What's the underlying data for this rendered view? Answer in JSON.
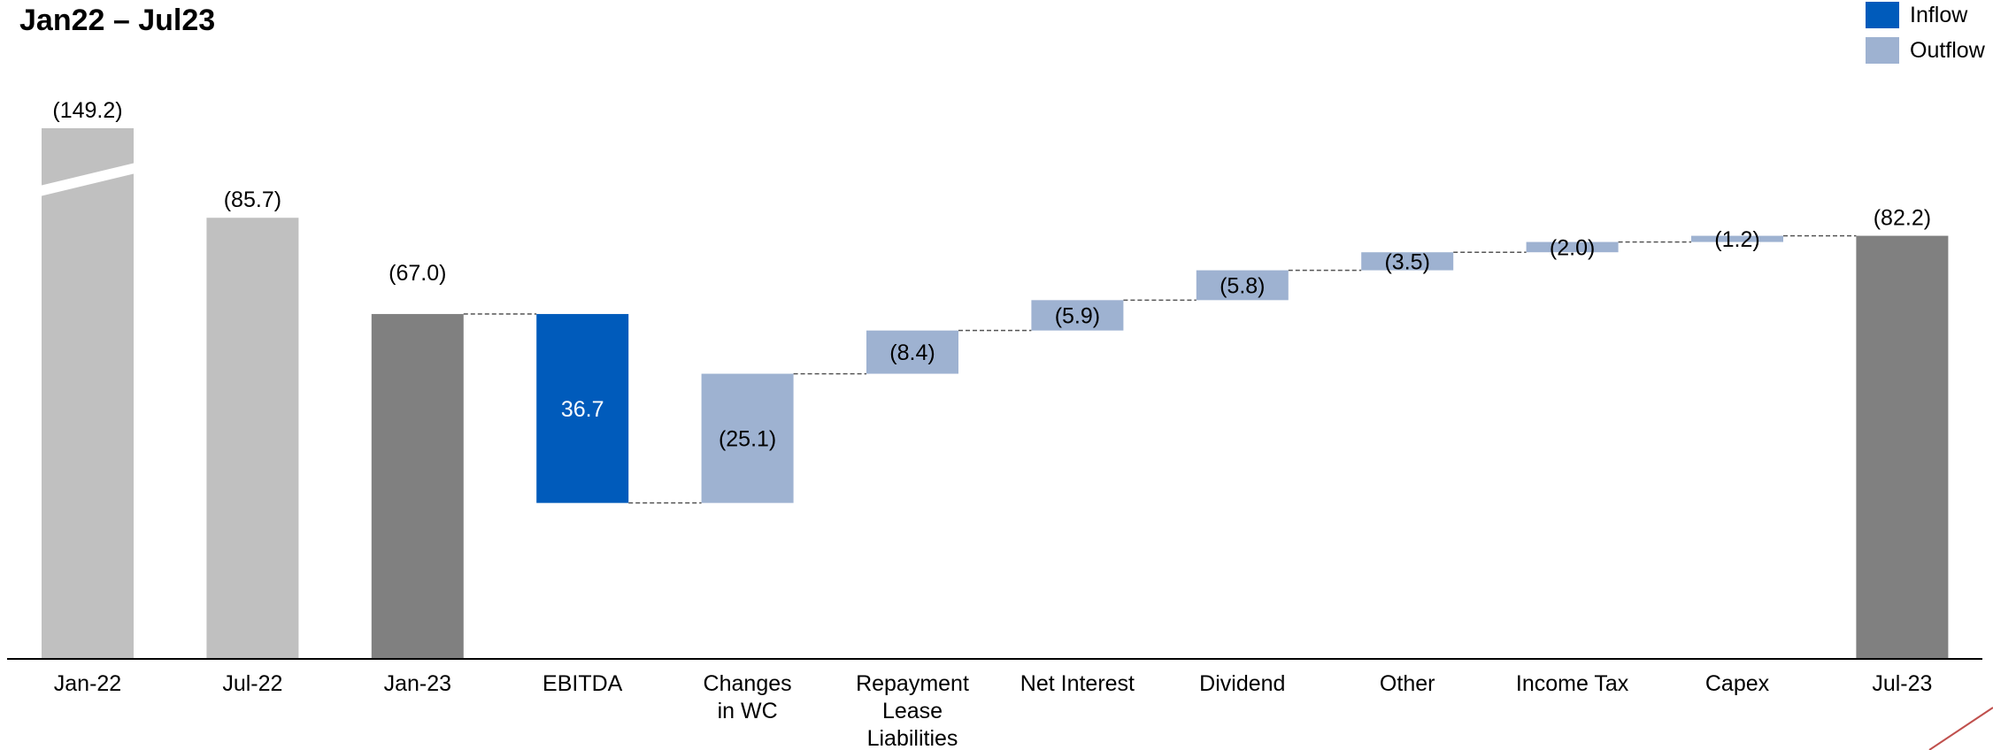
{
  "title": "Jan22 – Jul23",
  "legend": {
    "inflow_label": "Inflow",
    "outflow_label": "Outflow"
  },
  "colors": {
    "historical": "#c0c0c0",
    "total": "#808080",
    "inflow": "#005bbb",
    "outflow": "#9eb2d1",
    "connector": "#555555"
  },
  "chart_data": {
    "type": "bar",
    "subtype": "waterfall",
    "title": "Jan22 – Jul23",
    "xlabel": "",
    "ylabel": "",
    "categories": [
      "Jan-22",
      "Jul-22",
      "Jan-23",
      "EBITDA",
      "Changes in WC",
      "Repayment Lease Liabilities",
      "Net Interest",
      "Dividend",
      "Other",
      "Income Tax",
      "Capex",
      "Jul-23"
    ],
    "label_lines": [
      [
        "Jan-22"
      ],
      [
        "Jul-22"
      ],
      [
        "Jan-23"
      ],
      [
        "EBITDA"
      ],
      [
        "Changes",
        "in WC"
      ],
      [
        "Repayment",
        "Lease",
        "Liabilities"
      ],
      [
        "Net Interest"
      ],
      [
        "Dividend"
      ],
      [
        "Other"
      ],
      [
        "Income Tax"
      ],
      [
        "Capex"
      ],
      [
        "Jul-23"
      ]
    ],
    "bars": [
      {
        "category": "Jan-22",
        "kind": "historical",
        "value": 149.2,
        "label": "(149.2)",
        "axis_break": true
      },
      {
        "category": "Jul-22",
        "kind": "historical",
        "value": 85.7,
        "label": "(85.7)"
      },
      {
        "category": "Jan-23",
        "kind": "total",
        "value": 67.0,
        "label": "(67.0)"
      },
      {
        "category": "EBITDA",
        "kind": "inflow",
        "value": 36.7,
        "label": "36.7"
      },
      {
        "category": "Changes in WC",
        "kind": "outflow",
        "value": -25.1,
        "label": "(25.1)"
      },
      {
        "category": "Repayment Lease Liabilities",
        "kind": "outflow",
        "value": -8.4,
        "label": "(8.4)"
      },
      {
        "category": "Net Interest",
        "kind": "outflow",
        "value": -5.9,
        "label": "(5.9)"
      },
      {
        "category": "Dividend",
        "kind": "outflow",
        "value": -5.8,
        "label": "(5.8)"
      },
      {
        "category": "Other",
        "kind": "outflow",
        "value": -3.5,
        "label": "(3.5)"
      },
      {
        "category": "Income Tax",
        "kind": "outflow",
        "value": -2.0,
        "label": "(2.0)"
      },
      {
        "category": "Capex",
        "kind": "outflow",
        "value": -1.2,
        "label": "(1.2)"
      },
      {
        "category": "Jul-23",
        "kind": "total",
        "value": 82.2,
        "label": "(82.2)"
      }
    ]
  }
}
